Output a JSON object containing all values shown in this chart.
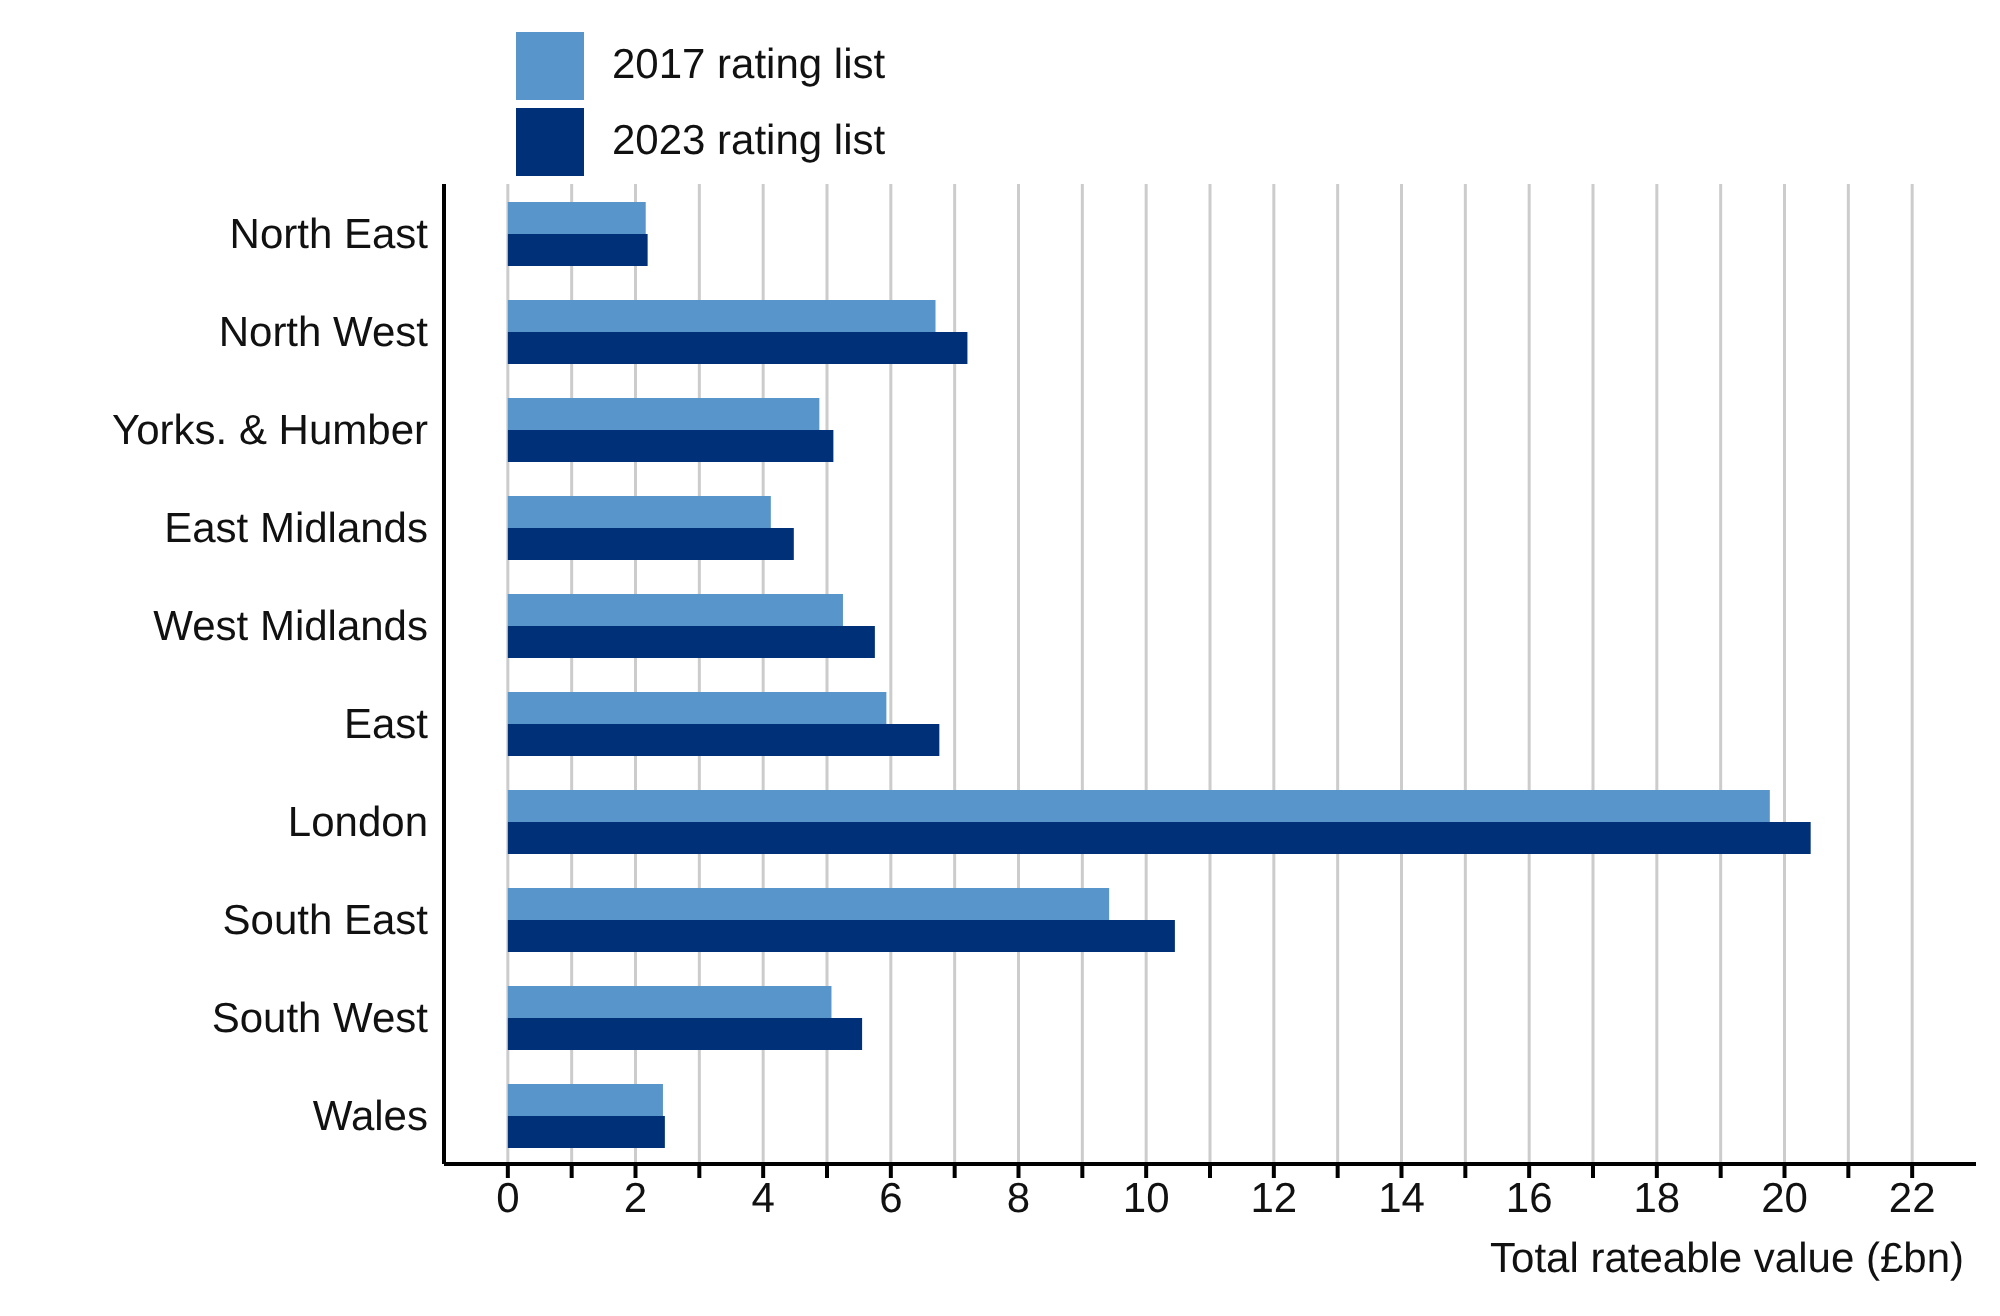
{
  "chart_data": {
    "type": "bar",
    "orientation": "horizontal",
    "xlabel": "Total rateable value (£bn)",
    "categories": [
      "North East",
      "North West",
      "Yorks. & Humber",
      "East Midlands",
      "West Midlands",
      "East",
      "London",
      "South East",
      "South West",
      "Wales"
    ],
    "series": [
      {
        "name": "2017 rating list",
        "color": "#5795ca",
        "values": [
          2.16,
          6.7,
          4.88,
          4.12,
          5.25,
          5.93,
          19.77,
          9.42,
          5.07,
          2.43
        ]
      },
      {
        "name": "2023 rating list",
        "color": "#003078",
        "values": [
          2.19,
          7.2,
          5.1,
          4.48,
          5.75,
          6.76,
          20.41,
          10.45,
          5.55,
          2.46
        ]
      }
    ],
    "xlim": [
      -1,
      23
    ],
    "xticks": [
      0,
      {
        "value": 1,
        "label": null
      },
      2,
      {
        "value": 3,
        "label": null
      },
      4,
      {
        "value": 5,
        "label": null
      },
      6,
      {
        "value": 7,
        "label": null
      },
      8,
      {
        "value": 9,
        "label": null
      },
      10,
      {
        "value": 11,
        "label": null
      },
      12,
      {
        "value": 13,
        "label": null
      },
      14,
      {
        "value": 15,
        "label": null
      },
      16,
      {
        "value": 17,
        "label": null
      },
      18,
      {
        "value": 19,
        "label": null
      },
      20,
      {
        "value": 21,
        "label": null
      },
      22
    ],
    "grid": "x",
    "legend": "top"
  }
}
